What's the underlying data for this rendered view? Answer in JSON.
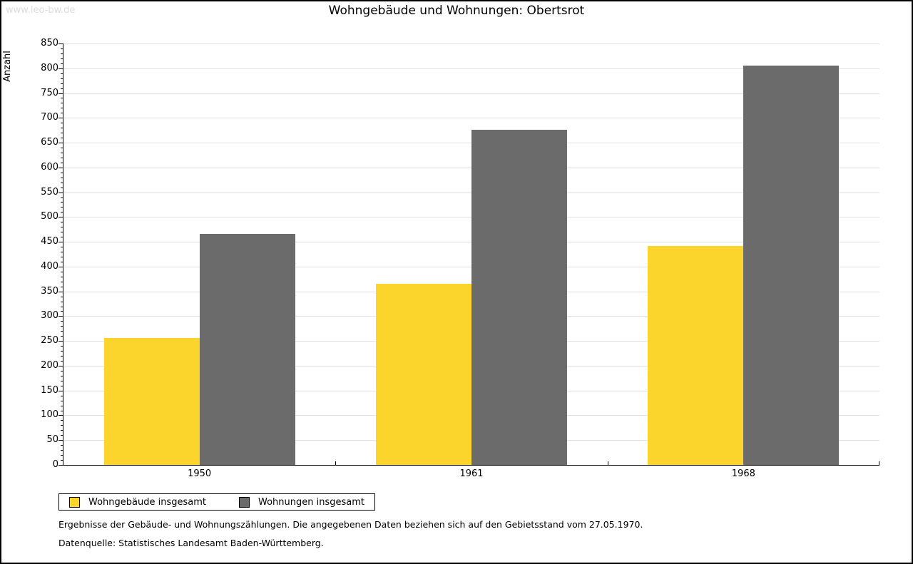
{
  "watermark": "www.leo-bw.de",
  "title": "Wohngebäude und Wohnungen: Obertsrot",
  "chart_data": {
    "type": "bar",
    "title": "Wohngebäude und Wohnungen: Obertsrot",
    "categories": [
      "1950",
      "1961",
      "1968"
    ],
    "series": [
      {
        "name": "Wohngebäude insgesamt",
        "color": "#FBD42C",
        "values": [
          256,
          366,
          441
        ]
      },
      {
        "name": "Wohnungen insgesamt",
        "color": "#6B6B6B",
        "values": [
          466,
          676,
          806
        ]
      }
    ],
    "xlabel": "",
    "ylabel": "Anzahl",
    "ylim": [
      0,
      850
    ],
    "ytick_step": 50,
    "yminor_step": 10,
    "grid": "horizontal-major",
    "gridline_color": "#E0E0E0",
    "legend_position": "bottom-left"
  },
  "footer": {
    "line1": "Ergebnisse der Gebäude- und Wohnungszählungen. Die angegebenen Daten beziehen sich auf den Gebietsstand vom 27.05.1970.",
    "line2": "Datenquelle: Statistisches Landesamt Baden-Württemberg."
  }
}
